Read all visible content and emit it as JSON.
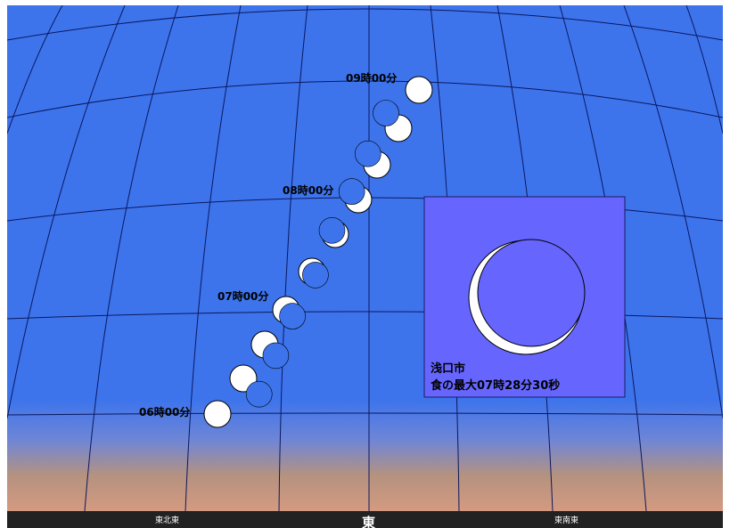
{
  "colors": {
    "sky": "#3d74ec",
    "grid": "#0a1860",
    "horizon_glow": "#d49a80",
    "ground_bar": "#222222",
    "inset_bg": "#6666ff",
    "sun_fill": "#ffffff",
    "moon_fill": "#3d74ec"
  },
  "time_labels": [
    {
      "id": "t0900",
      "text": "09時00分"
    },
    {
      "id": "t0800",
      "text": "08時00分"
    },
    {
      "id": "t0700",
      "text": "07時00分"
    },
    {
      "id": "t0600",
      "text": "06時00分"
    }
  ],
  "directions": {
    "left": "東北東",
    "center": "東",
    "right": "東南東"
  },
  "inset": {
    "city": "浅口市",
    "max_eclipse": "食の最大07時28分30秒"
  },
  "eclipse_phases": [
    {
      "time": "06:00",
      "coverage": 0.0
    },
    {
      "time": "06:20",
      "coverage": 0.2
    },
    {
      "time": "06:40",
      "coverage": 0.45
    },
    {
      "time": "07:00",
      "coverage": 0.7
    },
    {
      "time": "07:20",
      "coverage": 0.85
    },
    {
      "time": "07:40",
      "coverage": 0.85
    },
    {
      "time": "08:00",
      "coverage": 0.65
    },
    {
      "time": "08:20",
      "coverage": 0.5
    },
    {
      "time": "08:40",
      "coverage": 0.3
    },
    {
      "time": "09:00",
      "coverage": 0.0
    }
  ]
}
